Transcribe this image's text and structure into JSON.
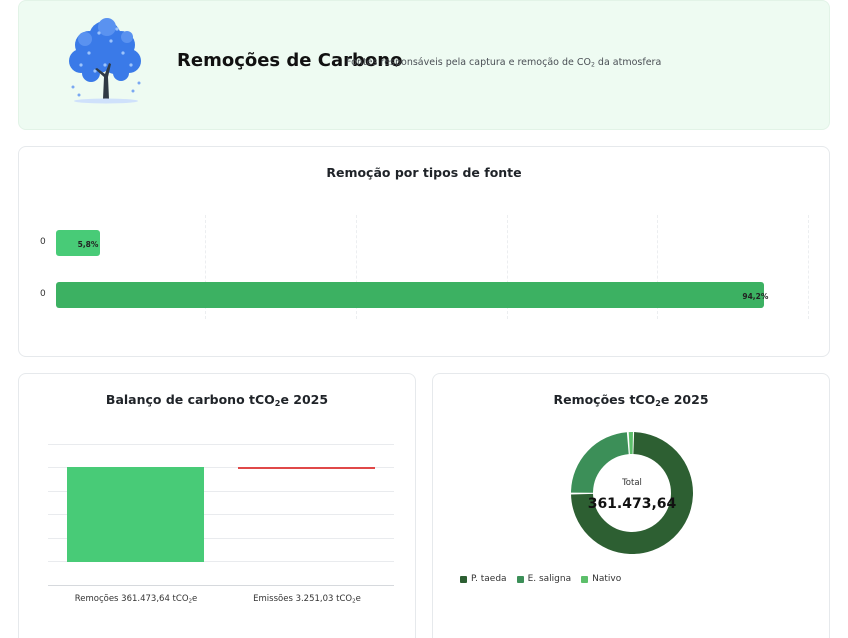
{
  "header": {
    "title": "Remoções de Carbono",
    "subtitle_pre": "Fontes responsáveis pela captura e remoção de CO",
    "subtitle_sub": "2",
    "subtitle_post": " da atmosfera"
  },
  "source_chart": {
    "title": "Remoção por tipos de fonte",
    "rows": [
      {
        "label": "0",
        "value_label": "5,8%",
        "percent": 5.8
      },
      {
        "label": "0",
        "value_label": "94,2%",
        "percent": 94.2
      }
    ]
  },
  "balance_chart": {
    "title_pre": "Balanço de carbono tCO",
    "title_sub": "2",
    "title_post": "e 2025",
    "bars": [
      {
        "label_pre": "Remoções 361.473,64 tCO",
        "label_sub": "2",
        "label_post": "e",
        "value": 361473.64
      },
      {
        "label_pre": "Emissões 3.251,03 tCO",
        "label_sub": "2",
        "label_post": "e",
        "value": 3251.03
      }
    ],
    "colors": {
      "removals": "#48cb77",
      "emissions": "#e04848"
    }
  },
  "removals_chart": {
    "title_pre": "Remoções tCO",
    "title_sub": "2",
    "title_post": "e 2025",
    "center_label": "Total",
    "center_value": "361.473,64",
    "legend": [
      {
        "name": "P. taeda",
        "color": "#2d5f32",
        "share": 0.744
      },
      {
        "name": "E. saligna",
        "color": "#3c8f58",
        "share": 0.24
      },
      {
        "name": "Nativo",
        "color": "#5cbf6a",
        "share": 0.016
      }
    ]
  },
  "chart_data": [
    {
      "type": "bar",
      "orientation": "horizontal",
      "title": "Remoção por tipos de fonte",
      "categories": [
        "0",
        "0"
      ],
      "values": [
        5.8,
        94.2
      ],
      "unit": "%"
    },
    {
      "type": "bar",
      "title": "Balanço de carbono tCO2e 2025",
      "categories": [
        "Remoções 361.473,64 tCO2e",
        "Emissões 3.251,03 tCO2e"
      ],
      "values": [
        361473.64,
        3251.03
      ]
    },
    {
      "type": "pie",
      "title": "Remoções tCO2e 2025",
      "categories": [
        "P. taeda",
        "E. saligna",
        "Nativo"
      ],
      "values": [
        74.4,
        24.0,
        1.6
      ],
      "unit": "%"
    }
  ]
}
